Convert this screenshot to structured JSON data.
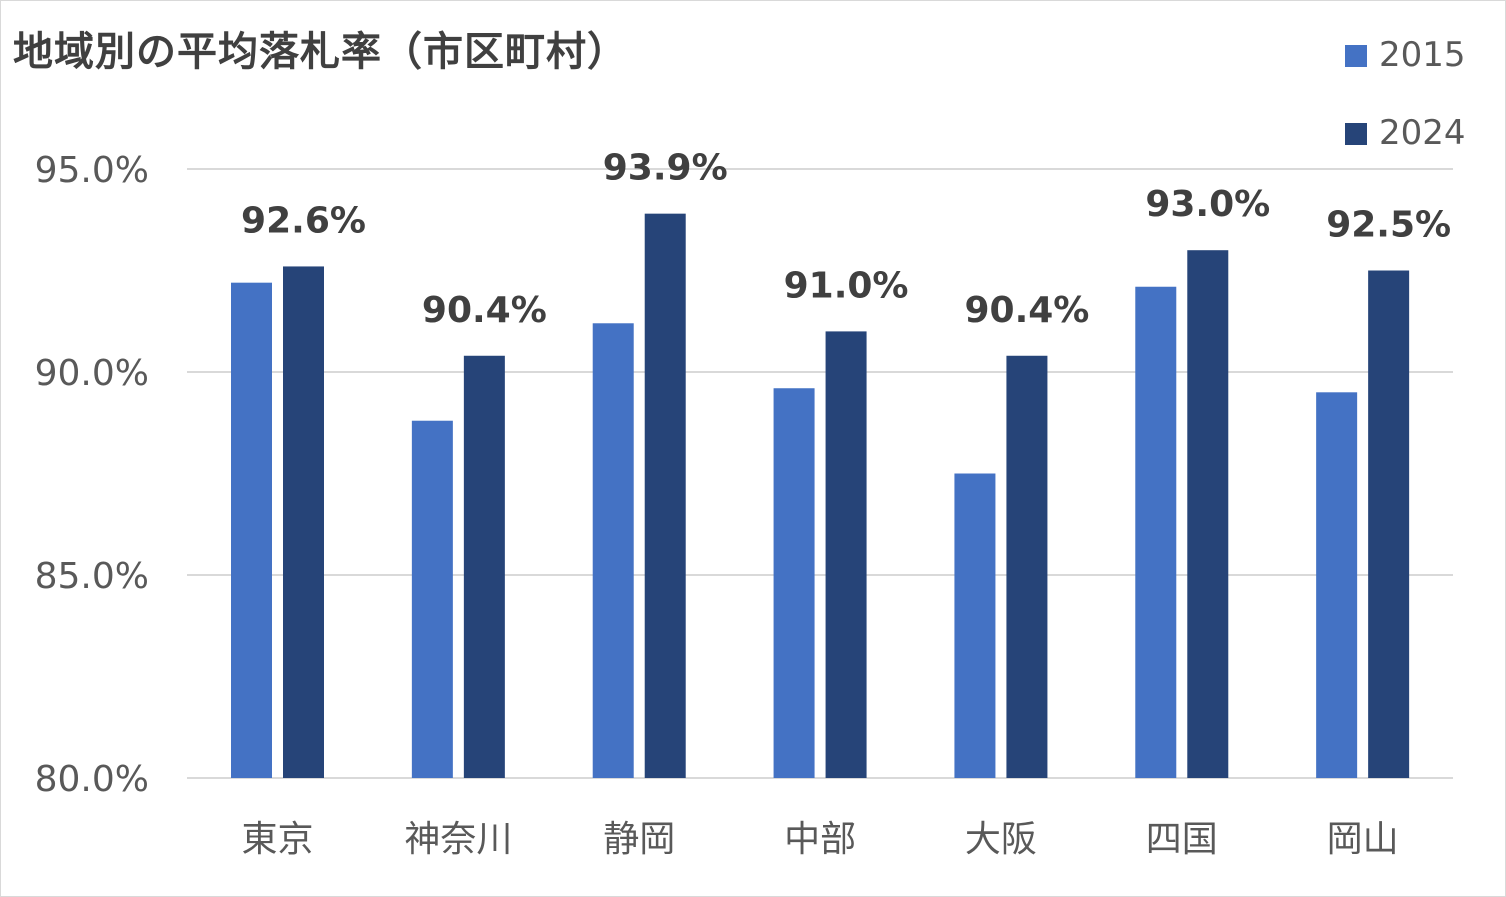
{
  "chart_data": {
    "type": "bar",
    "title": "地域別の平均落札率（市区町村）",
    "xlabel": "",
    "ylabel": "",
    "categories": [
      "東京",
      "神奈川",
      "静岡",
      "中部",
      "大阪",
      "四国",
      "岡山"
    ],
    "series": [
      {
        "name": "2015",
        "color": "#4472C4",
        "values": [
          92.2,
          88.8,
          91.2,
          89.6,
          87.5,
          92.1,
          89.5
        ]
      },
      {
        "name": "2024",
        "color": "#264478",
        "values": [
          92.6,
          90.4,
          93.9,
          91.0,
          90.4,
          93.0,
          92.5
        ],
        "data_labels": [
          "92.6%",
          "90.4%",
          "93.9%",
          "91.0%",
          "90.4%",
          "93.0%",
          "92.5%"
        ]
      }
    ],
    "ylim": [
      80,
      95
    ],
    "yticks": [
      80,
      85,
      90,
      95
    ],
    "ytick_labels": [
      "80.0%",
      "85.0%",
      "90.0%",
      "95.0%"
    ],
    "grid": true,
    "legend_position": "top-right"
  }
}
